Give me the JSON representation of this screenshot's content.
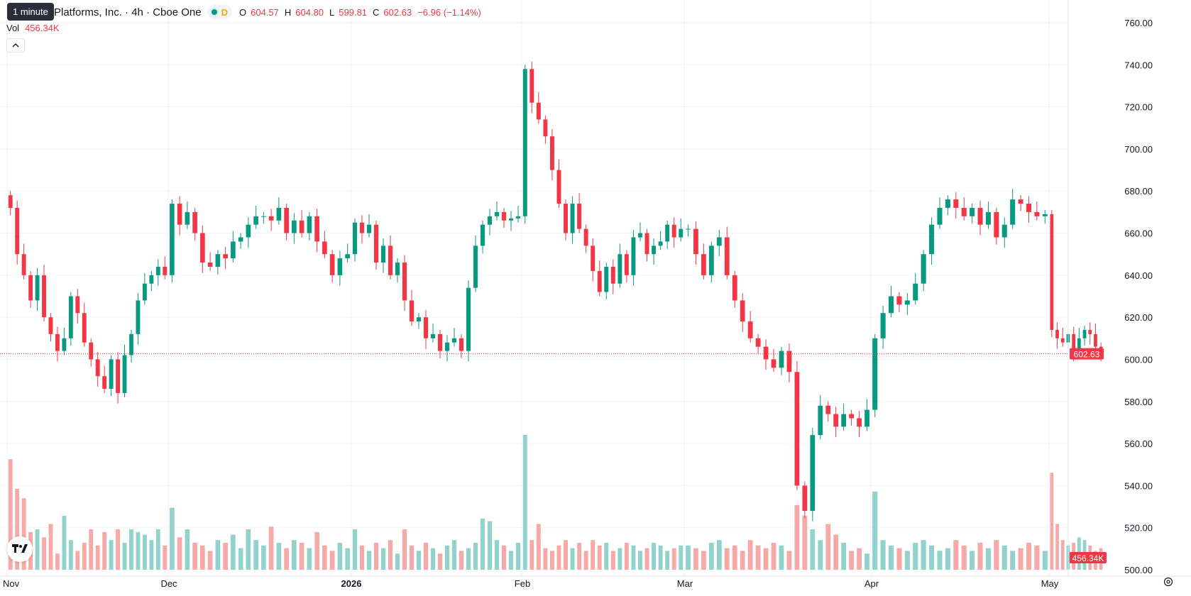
{
  "header": {
    "symbol_title": "Platforms, Inc. · 4h · Cboe One",
    "delay_letter": "D",
    "ohlc": [
      {
        "key": "O",
        "value": "604.57"
      },
      {
        "key": "H",
        "value": "604.80"
      },
      {
        "key": "L",
        "value": "599.81"
      },
      {
        "key": "C",
        "value": "602.63"
      }
    ],
    "change": "−6.96 (−1.14%)",
    "tooltip": "1 minute"
  },
  "volume_legend": {
    "label": "Vol",
    "value": "456.34K"
  },
  "last_price_label": "602.63",
  "last_volume_label": "456.34K",
  "colors": {
    "up": "#089981",
    "down": "#f23645",
    "up_volume": "#92d2cc",
    "down_volume": "#f7a9a7",
    "grid": "#f0f3fa",
    "text": "#131722"
  },
  "icons": {
    "collapse": "chevron-up-icon",
    "logo": "tradingview-logo",
    "settings": "gear-icon"
  },
  "chart_data": {
    "type": "candlestick",
    "y_ticks": [
      "760.00",
      "740.00",
      "720.00",
      "700.00",
      "680.00",
      "660.00",
      "640.00",
      "620.00",
      "600.00",
      "580.00",
      "560.00",
      "540.00",
      "520.00",
      "500.00"
    ],
    "ylim": [
      500,
      760
    ],
    "x_ticks": [
      "Nov",
      "Dec",
      "2026",
      "Feb",
      "Mar",
      "Apr",
      "May"
    ],
    "grid": true,
    "last_price": 602.63,
    "series": [
      {
        "name": "Price",
        "segments": [
          {
            "from": "Nov",
            "to": "Dec",
            "points": [
              672,
              650,
              640,
              628,
              640,
              620,
              612,
              604,
              610,
              630,
              622,
              608,
              600,
              592,
              586,
              600,
              584,
              602,
              612,
              628,
              636,
              640,
              644,
              640
            ]
          },
          {
            "from": "Dec",
            "to": "2026",
            "points": [
              674,
              664,
              670,
              660,
              646,
              644,
              650,
              648,
              656,
              658,
              664,
              668,
              668,
              666,
              672,
              660,
              666,
              660,
              668,
              656,
              650,
              640,
              648,
              650
            ]
          },
          {
            "from": "2026",
            "to": "Feb",
            "points": [
              665,
              660,
              664,
              646,
              654,
              640,
              646,
              628,
              618,
              620,
              610,
              612,
              604,
              608,
              610,
              604,
              634,
              654,
              664,
              668,
              670,
              666,
              667,
              668
            ]
          },
          {
            "from": "Feb",
            "to": "Mar",
            "points": [
              738,
              722,
              714,
              706,
              690,
              674,
              660,
              674,
              662,
              654,
              642,
              632,
              644,
              636,
              650,
              640,
              658,
              660,
              650,
              654,
              656,
              664,
              658,
              662
            ]
          },
          {
            "from": "Mar",
            "to": "Apr",
            "points": [
              662,
              650,
              640,
              654,
              658,
              640,
              628,
              618,
              610,
              606,
              600,
              596,
              604,
              594,
              540,
              528,
              564,
              578,
              574,
              568,
              574,
              572,
              568,
              576
            ]
          },
          {
            "from": "Apr",
            "to": "May",
            "points": [
              610,
              622,
              630,
              626,
              628,
              636,
              650,
              664,
              672,
              676,
              672,
              668,
              672,
              664,
              670,
              658,
              664,
              676,
              674,
              670,
              668,
              669
            ]
          },
          {
            "from": "May",
            "to": "",
            "points": [
              614,
              610,
              608,
              612,
              604,
              610,
              614,
              612,
              606,
              602.63
            ]
          }
        ]
      },
      {
        "name": "Volume",
        "segments": [
          {
            "from": "Nov",
            "to": "Dec",
            "points": [
              0.82,
              0.6,
              0.53,
              0.28,
              0.3,
              0.24,
              0.34,
              0.12,
              0.4,
              0.22,
              0.14,
              0.2,
              0.3,
              0.18,
              0.28,
              0.22,
              0.3,
              0.2,
              0.3,
              0.28,
              0.26,
              0.22,
              0.3,
              0.18
            ]
          },
          {
            "from": "Dec",
            "to": "2026",
            "points": [
              0.46,
              0.24,
              0.3,
              0.2,
              0.18,
              0.14,
              0.22,
              0.2,
              0.26,
              0.16,
              0.3,
              0.22,
              0.18,
              0.32,
              0.2,
              0.16,
              0.22,
              0.2,
              0.16,
              0.28,
              0.18,
              0.14,
              0.2,
              0.16
            ]
          },
          {
            "from": "2026",
            "to": "Feb",
            "points": [
              0.3,
              0.18,
              0.14,
              0.2,
              0.16,
              0.22,
              0.12,
              0.3,
              0.18,
              0.14,
              0.2,
              0.16,
              0.12,
              0.18,
              0.22,
              0.14,
              0.16,
              0.2,
              0.38,
              0.36,
              0.22,
              0.18,
              0.14,
              0.2
            ]
          },
          {
            "from": "Feb",
            "to": "Mar",
            "points": [
              1.0,
              0.22,
              0.34,
              0.16,
              0.14,
              0.18,
              0.22,
              0.16,
              0.2,
              0.14,
              0.22,
              0.18,
              0.2,
              0.14,
              0.16,
              0.2,
              0.18,
              0.14,
              0.16,
              0.2,
              0.18,
              0.14,
              0.16,
              0.18
            ]
          },
          {
            "from": "Mar",
            "to": "Apr",
            "points": [
              0.18,
              0.16,
              0.14,
              0.2,
              0.22,
              0.16,
              0.18,
              0.14,
              0.22,
              0.18,
              0.16,
              0.2,
              0.18,
              0.14,
              0.48,
              0.4,
              0.3,
              0.22,
              0.34,
              0.26,
              0.2,
              0.14,
              0.16,
              0.12
            ]
          },
          {
            "from": "Apr",
            "to": "May",
            "points": [
              0.58,
              0.22,
              0.18,
              0.16,
              0.14,
              0.2,
              0.22,
              0.18,
              0.14,
              0.16,
              0.22,
              0.18,
              0.14,
              0.2,
              0.16,
              0.22,
              0.18,
              0.14,
              0.16,
              0.2,
              0.18,
              0.14
            ]
          },
          {
            "from": "May",
            "to": "",
            "points": [
              0.72,
              0.34,
              0.22,
              0.18,
              0.2,
              0.24,
              0.22,
              0.18,
              0.14,
              0.16
            ]
          }
        ]
      }
    ]
  }
}
